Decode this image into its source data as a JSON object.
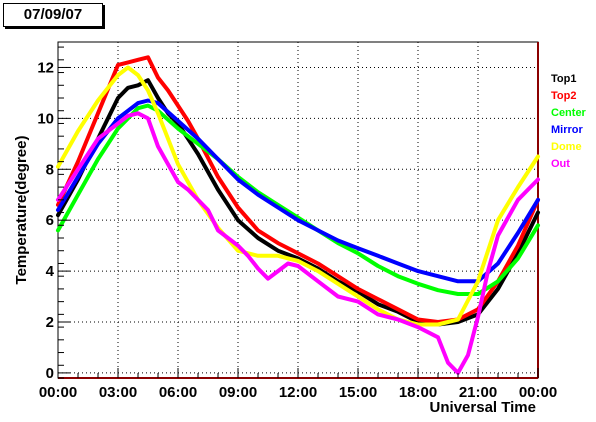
{
  "header": {
    "date": "07/09/07"
  },
  "chart_data": {
    "type": "line",
    "title": "",
    "xlabel": "Universal Time",
    "ylabel": "Temperature(degree)",
    "xlim": [
      0,
      24
    ],
    "ylim": [
      -0.2,
      13
    ],
    "x_ticks": [
      0,
      3,
      6,
      9,
      12,
      15,
      18,
      21,
      24
    ],
    "x_tick_labels": [
      "00:00",
      "03:00",
      "06:00",
      "09:00",
      "12:00",
      "15:00",
      "18:00",
      "21:00",
      "00:00"
    ],
    "y_ticks": [
      0,
      2,
      4,
      6,
      8,
      10,
      12
    ],
    "y_tick_labels": [
      "0",
      "2",
      "4",
      "6",
      "8",
      "10",
      "12"
    ],
    "grid": true,
    "legend_position": "right",
    "series": [
      {
        "name": "Top1",
        "color": "#000000",
        "x": [
          0,
          1,
          2,
          3,
          3.5,
          4,
          4.5,
          5,
          5.5,
          6,
          6.5,
          7,
          8,
          9,
          10,
          11,
          12,
          13,
          14,
          15,
          16,
          17,
          18,
          19,
          20,
          21,
          22,
          23,
          24
        ],
        "y": [
          6.2,
          7.6,
          9.2,
          10.8,
          11.2,
          11.3,
          11.5,
          10.8,
          10.2,
          9.8,
          9.2,
          8.6,
          7.2,
          6.0,
          5.3,
          4.8,
          4.5,
          4.1,
          3.6,
          3.2,
          2.7,
          2.4,
          2.0,
          1.9,
          2.0,
          2.3,
          3.3,
          4.7,
          6.3
        ]
      },
      {
        "name": "Top2",
        "color": "#ff0000",
        "x": [
          0,
          1,
          2,
          3,
          3.5,
          4,
          4.5,
          5,
          5.5,
          6,
          6.5,
          7,
          8,
          9,
          10,
          11,
          12,
          13,
          14,
          15,
          16,
          17,
          18,
          19,
          20,
          21,
          22,
          23,
          24
        ],
        "y": [
          6.6,
          8.3,
          10.2,
          12.1,
          12.2,
          12.3,
          12.4,
          11.6,
          11.1,
          10.5,
          9.9,
          9.2,
          7.7,
          6.5,
          5.6,
          5.1,
          4.7,
          4.3,
          3.8,
          3.3,
          2.9,
          2.5,
          2.1,
          2.0,
          2.1,
          2.5,
          3.6,
          5.0,
          6.8
        ]
      },
      {
        "name": "Center",
        "color": "#00ff00",
        "x": [
          0,
          1,
          2,
          3,
          4,
          4.5,
          5,
          6,
          7,
          8,
          9,
          10,
          11,
          12,
          13,
          14,
          15,
          16,
          17,
          18,
          19,
          20,
          21,
          22,
          23,
          24
        ],
        "y": [
          5.6,
          7.0,
          8.4,
          9.6,
          10.4,
          10.5,
          10.3,
          9.6,
          9.0,
          8.4,
          7.7,
          7.1,
          6.6,
          6.1,
          5.6,
          5.1,
          4.7,
          4.2,
          3.8,
          3.5,
          3.25,
          3.1,
          3.1,
          3.6,
          4.5,
          5.8
        ]
      },
      {
        "name": "Mirror",
        "color": "#0000ff",
        "x": [
          0,
          1,
          2,
          3,
          4,
          4.5,
          5,
          6,
          7,
          8,
          9,
          10,
          11,
          12,
          13,
          14,
          15,
          16,
          17,
          18,
          19,
          20,
          21,
          22,
          23,
          24
        ],
        "y": [
          6.4,
          7.7,
          9.0,
          10.0,
          10.6,
          10.7,
          10.6,
          9.9,
          9.2,
          8.4,
          7.6,
          7.0,
          6.5,
          6.0,
          5.6,
          5.2,
          4.9,
          4.6,
          4.3,
          4.0,
          3.8,
          3.6,
          3.6,
          4.3,
          5.5,
          6.8
        ]
      },
      {
        "name": "Dome",
        "color": "#ffff00",
        "x": [
          0,
          1,
          2,
          3,
          3.5,
          4,
          4.5,
          5,
          5.5,
          6,
          7,
          8,
          9,
          10,
          11,
          12,
          13,
          14,
          15,
          16,
          17,
          18,
          19,
          20,
          21,
          22,
          23,
          24
        ],
        "y": [
          8.1,
          9.5,
          10.7,
          11.7,
          12.0,
          11.7,
          11.1,
          10.2,
          9.2,
          8.2,
          6.8,
          5.7,
          4.8,
          4.6,
          4.6,
          4.4,
          4.0,
          3.5,
          3.0,
          2.5,
          2.1,
          1.9,
          1.9,
          2.1,
          3.6,
          6.0,
          7.3,
          8.5
        ]
      },
      {
        "name": "Out",
        "color": "#ff00ff",
        "x": [
          0,
          1,
          2,
          3,
          3.5,
          4,
          4.5,
          5,
          5.5,
          6,
          6.5,
          7,
          7.5,
          8,
          8.5,
          9,
          9.5,
          10,
          10.5,
          11,
          11.5,
          12,
          13,
          14,
          15,
          16,
          17,
          18,
          18.5,
          19,
          19.5,
          20,
          20.5,
          21,
          21.5,
          22,
          23,
          23.5,
          24
        ],
        "y": [
          6.8,
          8.0,
          9.2,
          9.8,
          10.1,
          10.2,
          10.0,
          8.9,
          8.2,
          7.5,
          7.2,
          6.8,
          6.4,
          5.6,
          5.3,
          5.0,
          4.6,
          4.1,
          3.7,
          4.0,
          4.3,
          4.2,
          3.6,
          3.0,
          2.8,
          2.3,
          2.1,
          1.8,
          1.6,
          1.4,
          0.4,
          0.0,
          0.7,
          2.2,
          4.0,
          5.4,
          6.8,
          7.2,
          7.6
        ]
      }
    ]
  }
}
